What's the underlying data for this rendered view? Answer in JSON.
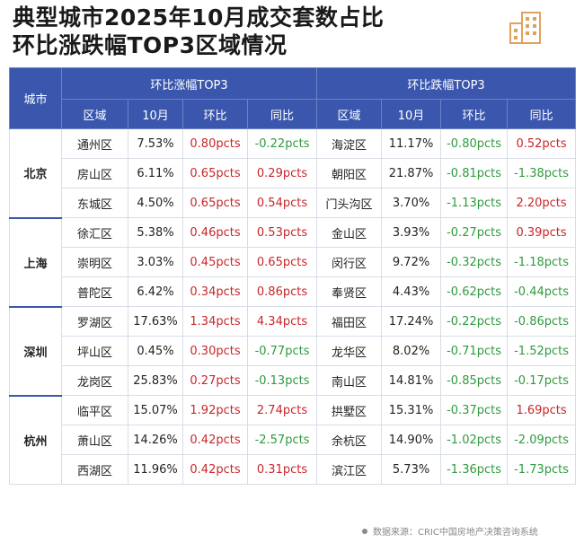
{
  "title_line1": "典型城市2025年10月成交套数占比",
  "title_line2": "环比涨跌幅TOP3区域情况",
  "header": {
    "city": "城市",
    "rise_group": "环比涨幅TOP3",
    "fall_group": "环比跌幅TOP3",
    "district": "区域",
    "october": "10月",
    "mom": "环比",
    "yoy": "同比"
  },
  "rows": [
    {
      "city": "北京",
      "r_district": "通州区",
      "r_oct": "7.53%",
      "r_mom": "0.80pcts",
      "r_yoy": "-0.22pcts",
      "f_district": "海淀区",
      "f_oct": "11.17%",
      "f_mom": "-0.80pcts",
      "f_yoy": "0.52pcts"
    },
    {
      "city": "北京",
      "r_district": "房山区",
      "r_oct": "6.11%",
      "r_mom": "0.65pcts",
      "r_yoy": "0.29pcts",
      "f_district": "朝阳区",
      "f_oct": "21.87%",
      "f_mom": "-0.81pcts",
      "f_yoy": "-1.38pcts"
    },
    {
      "city": "北京",
      "r_district": "东城区",
      "r_oct": "4.50%",
      "r_mom": "0.65pcts",
      "r_yoy": "0.54pcts",
      "f_district": "门头沟区",
      "f_oct": "3.70%",
      "f_mom": "-1.13pcts",
      "f_yoy": "2.20pcts"
    },
    {
      "city": "上海",
      "r_district": "徐汇区",
      "r_oct": "5.38%",
      "r_mom": "0.46pcts",
      "r_yoy": "0.53pcts",
      "f_district": "金山区",
      "f_oct": "3.93%",
      "f_mom": "-0.27pcts",
      "f_yoy": "0.39pcts"
    },
    {
      "city": "上海",
      "r_district": "崇明区",
      "r_oct": "3.03%",
      "r_mom": "0.45pcts",
      "r_yoy": "0.65pcts",
      "f_district": "闵行区",
      "f_oct": "9.72%",
      "f_mom": "-0.32pcts",
      "f_yoy": "-1.18pcts"
    },
    {
      "city": "上海",
      "r_district": "普陀区",
      "r_oct": "6.42%",
      "r_mom": "0.34pcts",
      "r_yoy": "0.86pcts",
      "f_district": "奉贤区",
      "f_oct": "4.43%",
      "f_mom": "-0.62pcts",
      "f_yoy": "-0.44pcts"
    },
    {
      "city": "深圳",
      "r_district": "罗湖区",
      "r_oct": "17.63%",
      "r_mom": "1.34pcts",
      "r_yoy": "4.34pcts",
      "f_district": "福田区",
      "f_oct": "17.24%",
      "f_mom": "-0.22pcts",
      "f_yoy": "-0.86pcts"
    },
    {
      "city": "深圳",
      "r_district": "坪山区",
      "r_oct": "0.45%",
      "r_mom": "0.30pcts",
      "r_yoy": "-0.77pcts",
      "f_district": "龙华区",
      "f_oct": "8.02%",
      "f_mom": "-0.71pcts",
      "f_yoy": "-1.52pcts"
    },
    {
      "city": "深圳",
      "r_district": "龙岗区",
      "r_oct": "25.83%",
      "r_mom": "0.27pcts",
      "r_yoy": "-0.13pcts",
      "f_district": "南山区",
      "f_oct": "14.81%",
      "f_mom": "-0.85pcts",
      "f_yoy": "-0.17pcts"
    },
    {
      "city": "杭州",
      "r_district": "临平区",
      "r_oct": "15.07%",
      "r_mom": "1.92pcts",
      "r_yoy": "2.74pcts",
      "f_district": "拱墅区",
      "f_oct": "15.31%",
      "f_mom": "-0.37pcts",
      "f_yoy": "1.69pcts"
    },
    {
      "city": "杭州",
      "r_district": "萧山区",
      "r_oct": "14.26%",
      "r_mom": "0.42pcts",
      "r_yoy": "-2.57pcts",
      "f_district": "余杭区",
      "f_oct": "14.90%",
      "f_mom": "-1.02pcts",
      "f_yoy": "-2.09pcts"
    },
    {
      "city": "杭州",
      "r_district": "西湖区",
      "r_oct": "11.96%",
      "r_mom": "0.42pcts",
      "r_yoy": "0.31pcts",
      "f_district": "滨江区",
      "f_oct": "5.73%",
      "f_mom": "-1.36pcts",
      "f_yoy": "-1.73pcts"
    }
  ],
  "colors": {
    "header": "#3a57ad",
    "positive": "#c8262a",
    "negative": "#2f9a3e",
    "logo": "#e0a15c"
  },
  "logo_icon": "building-logo-icon",
  "source": "数据来源：CRIC中国房地产决策咨询系统"
}
